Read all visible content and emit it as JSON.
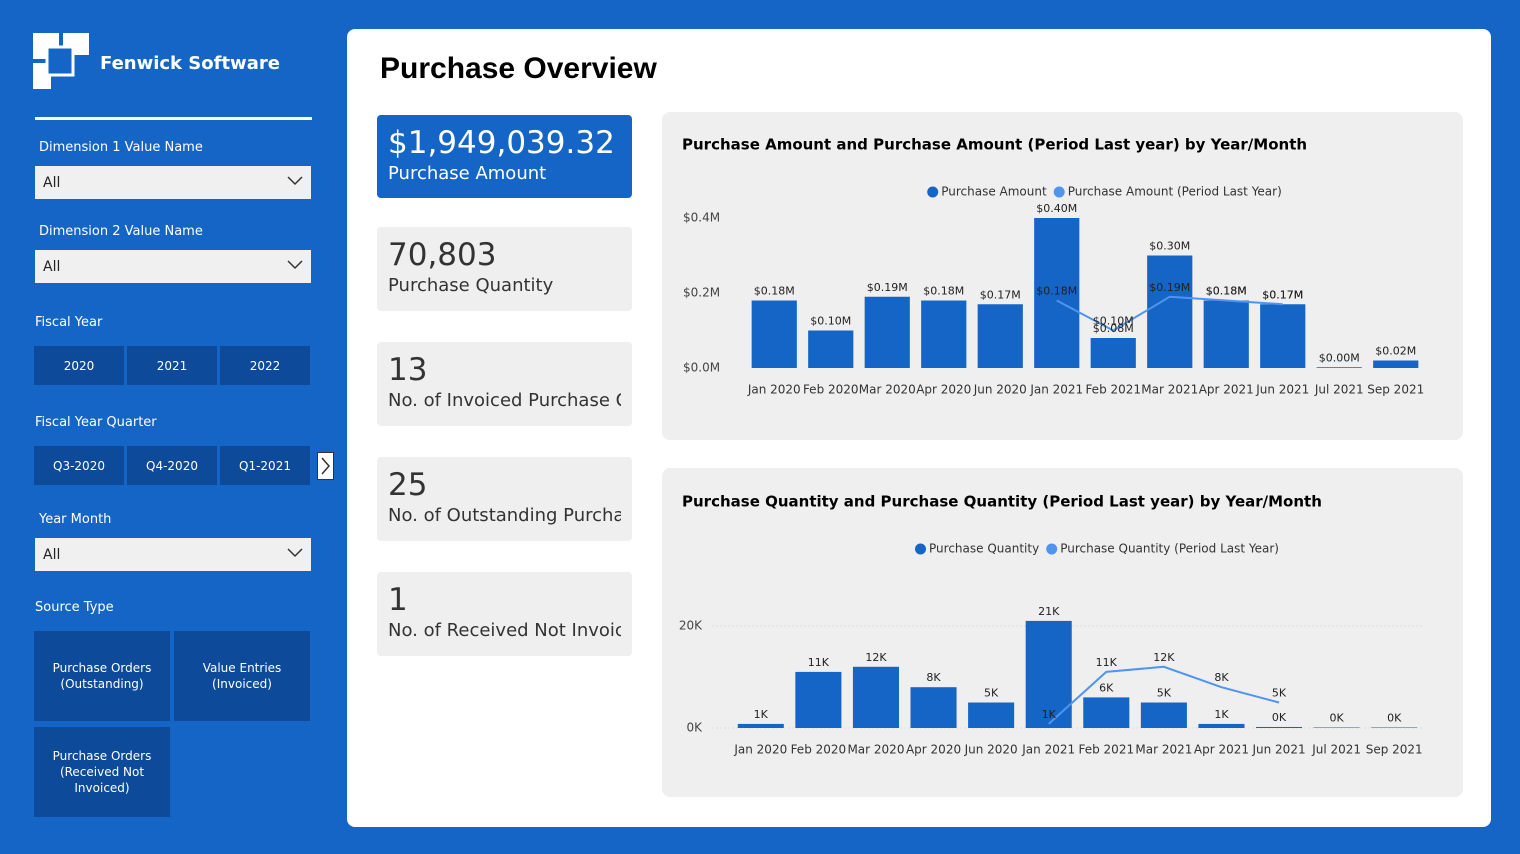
{
  "sidebar": {
    "brand": "Fenwick Software",
    "dimension1": {
      "label": "Dimension 1 Value Name",
      "value": "All"
    },
    "dimension2": {
      "label": "Dimension 2 Value Name",
      "value": "All"
    },
    "fiscal_year": {
      "label": "Fiscal Year",
      "options": [
        "2020",
        "2021",
        "2022"
      ]
    },
    "fiscal_quarter": {
      "label": "Fiscal Year Quarter",
      "options": [
        "Q3-2020",
        "Q4-2020",
        "Q1-2021"
      ]
    },
    "year_month": {
      "label": "Year Month",
      "value": "All"
    },
    "source_type": {
      "label": "Source Type",
      "options": [
        "Purchase Orders (Outstanding)",
        "Value Entries (Invoiced)",
        "Purchase Orders (Received Not Invoiced)"
      ]
    }
  },
  "page_title": "Purchase Overview",
  "kpis": [
    {
      "value": "$1,949,039.32",
      "label": "Purchase Amount"
    },
    {
      "value": "70,803",
      "label": "Purchase Quantity"
    },
    {
      "value": "13",
      "label": "No. of Invoiced Purchase Or…"
    },
    {
      "value": "25",
      "label": "No. of Outstanding Purchas…"
    },
    {
      "value": "1",
      "label": "No. of Received Not Invoice…"
    }
  ],
  "chart_data": [
    {
      "type": "bar",
      "title": "Purchase Amount and Purchase Amount (Period Last year) by Year/Month",
      "categories": [
        "Jan 2020",
        "Feb 2020",
        "Mar 2020",
        "Apr 2020",
        "Jun 2020",
        "Jan 2021",
        "Feb 2021",
        "Mar 2021",
        "Apr 2021",
        "Jun 2021",
        "Jul 2021",
        "Sep 2021"
      ],
      "series": [
        {
          "name": "Purchase Amount",
          "type": "bar",
          "color": "#1565c6",
          "values": [
            180000,
            100000,
            190000,
            180000,
            170000,
            400000,
            80000,
            300000,
            180000,
            170000,
            2000,
            20000
          ],
          "value_labels": [
            "$0.18M",
            "$0.10M",
            "$0.19M",
            "$0.18M",
            "$0.17M",
            "$0.40M",
            "$0.08M",
            "$0.30M",
            "$0.18M",
            "$0.17M",
            "$0.00M",
            "$0.02M"
          ]
        },
        {
          "name": "Purchase Amount (Period Last Year)",
          "type": "line",
          "color": "#4f94ef",
          "values": [
            null,
            null,
            null,
            null,
            null,
            180000,
            100000,
            190000,
            180000,
            170000,
            null,
            null
          ],
          "value_labels": [
            null,
            null,
            null,
            null,
            null,
            "$0.18M",
            "$0.10M",
            "$0.19M",
            "$0.18M",
            "$0.17M",
            null,
            null
          ]
        }
      ],
      "ylim": [
        0,
        400000
      ],
      "yticks": [
        {
          "value": 0,
          "label": "$0.0M"
        },
        {
          "value": 200000,
          "label": "$0.2M"
        },
        {
          "value": 400000,
          "label": "$0.4M"
        }
      ],
      "grid": false,
      "legend": "top"
    },
    {
      "type": "bar",
      "title": "Purchase Quantity and Purchase Quantity (Period Last year) by Year/Month",
      "categories": [
        "Jan 2020",
        "Feb 2020",
        "Mar 2020",
        "Apr 2020",
        "Jun 2020",
        "Jan 2021",
        "Feb 2021",
        "Mar 2021",
        "Apr 2021",
        "Jun 2021",
        "Jul 2021",
        "Sep 2021"
      ],
      "series": [
        {
          "name": "Purchase Quantity",
          "type": "bar",
          "color": "#1565c6",
          "values": [
            800,
            11000,
            12000,
            8000,
            5000,
            21000,
            6000,
            5000,
            800,
            200,
            100,
            100
          ],
          "value_labels": [
            "1K",
            "11K",
            "12K",
            "8K",
            "5K",
            "21K",
            "6K",
            "5K",
            "1K",
            "0K",
            "0K",
            "0K"
          ]
        },
        {
          "name": "Purchase Quantity (Period Last Year)",
          "type": "line",
          "color": "#4f94ef",
          "values": [
            null,
            null,
            null,
            null,
            null,
            800,
            11000,
            12000,
            8000,
            5000,
            null,
            null
          ],
          "value_labels": [
            null,
            null,
            null,
            null,
            null,
            "1K",
            "11K",
            "12K",
            "8K",
            "5K",
            null,
            null
          ]
        }
      ],
      "ylim": [
        0,
        21000
      ],
      "yticks": [
        {
          "value": 0,
          "label": "0K"
        },
        {
          "value": 20000,
          "label": "20K"
        }
      ],
      "grid": true,
      "legend": "top"
    }
  ]
}
